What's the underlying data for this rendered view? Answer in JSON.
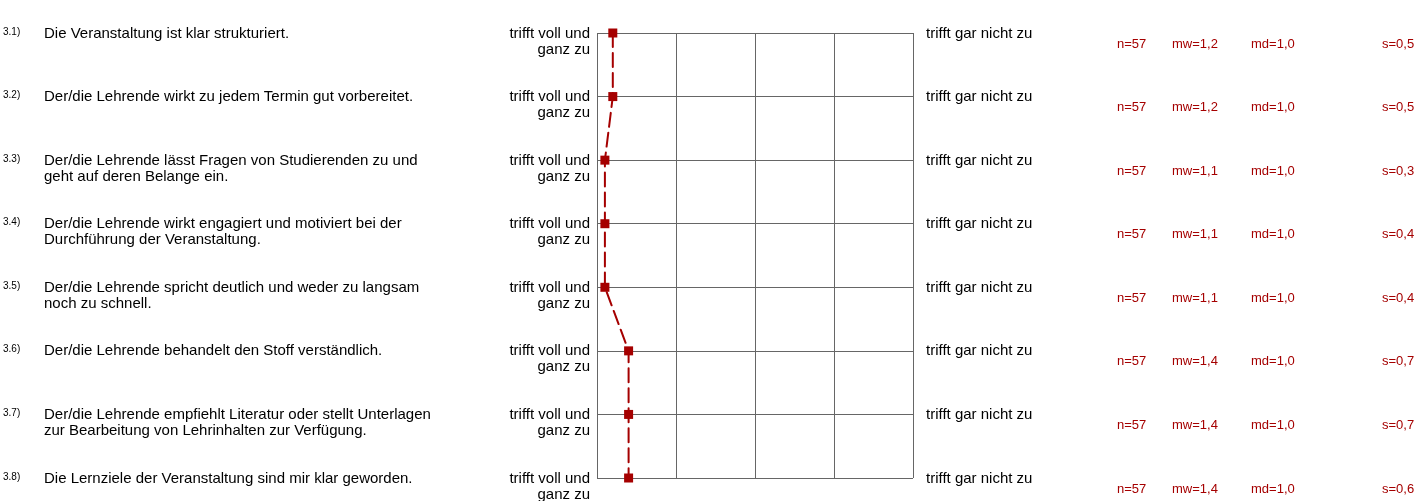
{
  "chart_data": {
    "type": "line",
    "orientation": "horizontal",
    "categories": [
      "Die Veranstaltung ist klar strukturiert.",
      "Der/die Lehrende wirkt zu jedem Termin gut vorbereitet.",
      "Der/die Lehrende lässt Fragen von Studierenden zu und geht auf deren Belange ein.",
      "Der/die Lehrende wirkt engagiert und motiviert bei der Durchführung der Veranstaltung.",
      "Der/die Lehrende spricht deutlich und weder zu langsam noch zu schnell.",
      "Der/die Lehrende behandelt den Stoff verständlich.",
      "Der/die Lehrende empfiehlt Literatur oder stellt Unterlagen zur Bearbeitung von Lehrinhalten zur Verfügung.",
      "Die Lernziele der Veranstaltung sind mir klar geworden."
    ],
    "values": [
      1.2,
      1.2,
      1.1,
      1.1,
      1.1,
      1.4,
      1.4,
      1.4
    ],
    "value_labels": [
      "mw=1,2",
      "mw=1,2",
      "mw=1,1",
      "mw=1,1",
      "mw=1,1",
      "mw=1,4",
      "mw=1,4",
      "mw=1,4"
    ],
    "color": "#a50000",
    "marker": "square",
    "line_style": "dashed",
    "xlim": [
      1,
      5
    ],
    "xticks": [
      {
        "value": 1,
        "label": null
      },
      {
        "value": 2,
        "label": null
      },
      {
        "value": 3,
        "label": null
      },
      {
        "value": 4,
        "label": null
      },
      {
        "value": 5,
        "label": null
      }
    ],
    "grid": true,
    "tick_labels": "y",
    "annotations": [
      "3.1)",
      "trifft voll und ganz zu",
      "trifft gar nicht zu",
      "n=57",
      "md=1,0",
      "s=0,5",
      "3.2)",
      "trifft voll und ganz zu",
      "trifft gar nicht zu",
      "n=57",
      "md=1,0",
      "s=0,5",
      "3.3)",
      "trifft voll und ganz zu",
      "trifft gar nicht zu",
      "n=57",
      "md=1,0",
      "s=0,3",
      "3.4)",
      "trifft voll und ganz zu",
      "trifft gar nicht zu",
      "n=57",
      "md=1,0",
      "s=0,4",
      "3.5)",
      "trifft voll und ganz zu",
      "trifft gar nicht zu",
      "n=57",
      "md=1,0",
      "s=0,4",
      "3.6)",
      "trifft voll und ganz zu",
      "trifft gar nicht zu",
      "n=57",
      "md=1,0",
      "s=0,7",
      "3.7)",
      "trifft voll und ganz zu",
      "trifft gar nicht zu",
      "n=57",
      "md=1,0",
      "s=0,7",
      "3.8)",
      "trifft voll und ganz zu",
      "trifft gar nicht zu",
      "n=57",
      "md=1,0",
      "s=0,6"
    ]
  }
}
